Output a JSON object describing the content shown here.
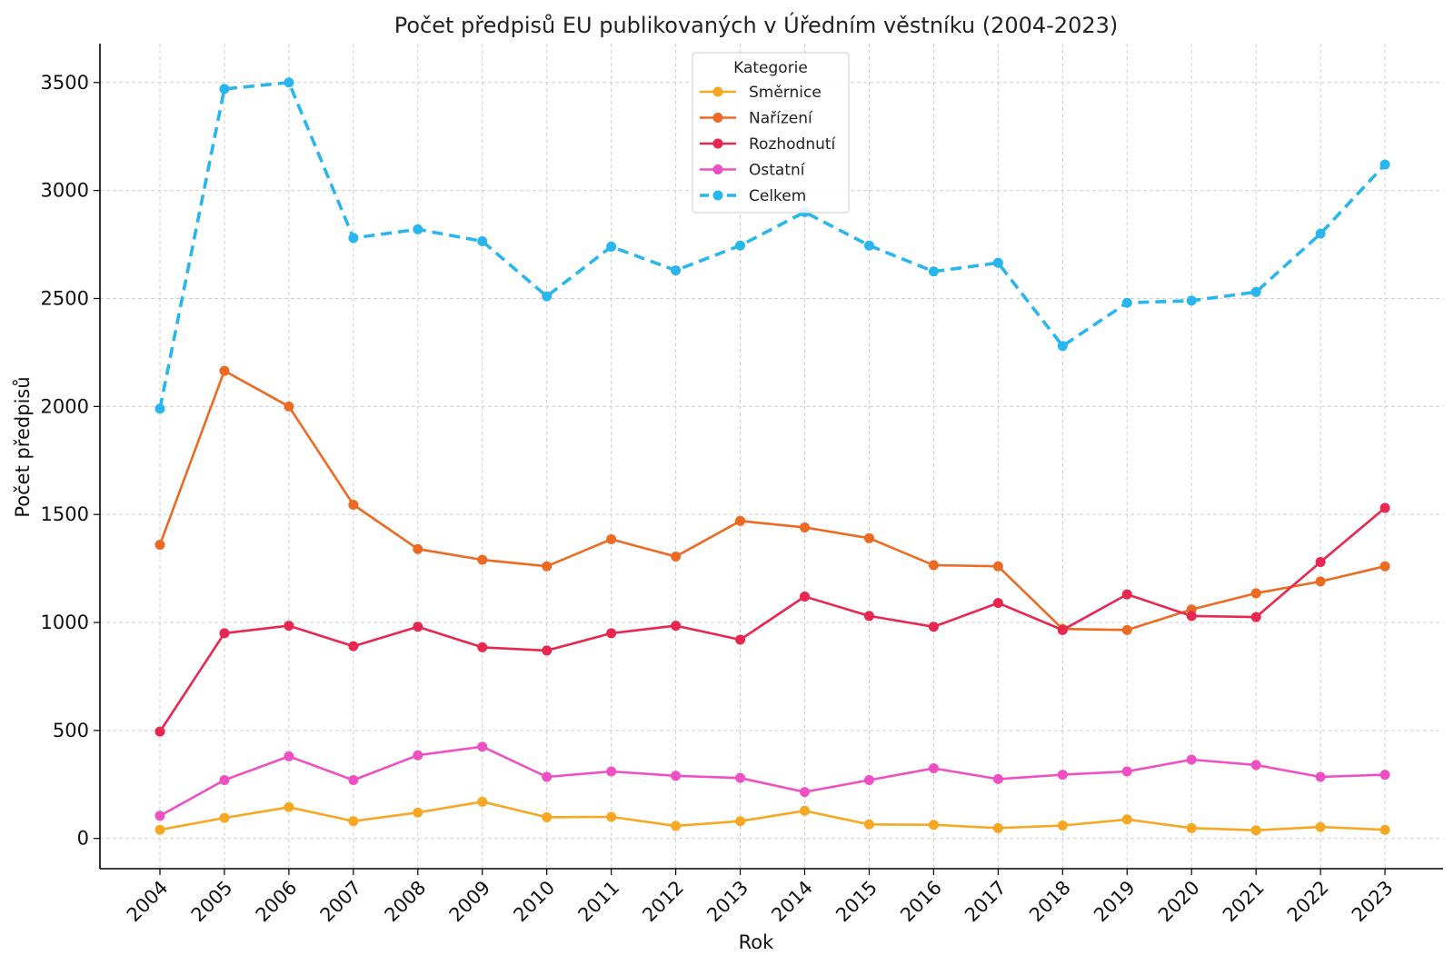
{
  "chart_data": {
    "type": "line",
    "title": "Počet předpisů EU publikovaných v Úředním věstníku (2004-2023)",
    "xlabel": "Rok",
    "ylabel": "Počet předpisů",
    "ylim": [
      -140,
      3680
    ],
    "yticks": [
      0,
      500,
      1000,
      1500,
      2000,
      2500,
      3000,
      3500
    ],
    "grid": true,
    "legend_title": "Kategorie",
    "legend_position": "top-center",
    "categories": [
      "2004",
      "2005",
      "2006",
      "2007",
      "2008",
      "2009",
      "2010",
      "2011",
      "2012",
      "2013",
      "2014",
      "2015",
      "2016",
      "2017",
      "2018",
      "2019",
      "2020",
      "2021",
      "2022",
      "2023"
    ],
    "series": [
      {
        "name": "Směrnice",
        "color": "#f7a823",
        "dashed": false,
        "values": [
          40,
          95,
          145,
          80,
          120,
          170,
          98,
          100,
          58,
          80,
          128,
          65,
          63,
          48,
          60,
          88,
          48,
          38,
          53,
          40
        ]
      },
      {
        "name": "Nařízení",
        "color": "#ec6a22",
        "dashed": false,
        "values": [
          1360,
          2165,
          2000,
          1545,
          1340,
          1290,
          1260,
          1385,
          1305,
          1470,
          1440,
          1390,
          1265,
          1260,
          970,
          965,
          1060,
          1135,
          1190,
          1260
        ]
      },
      {
        "name": "Rozhodnutí",
        "color": "#e8264f",
        "dashed": false,
        "values": [
          495,
          950,
          985,
          890,
          980,
          885,
          870,
          950,
          985,
          920,
          1120,
          1030,
          980,
          1090,
          965,
          1130,
          1030,
          1025,
          1280,
          1530
        ]
      },
      {
        "name": "Ostatní",
        "color": "#ee50c4",
        "dashed": false,
        "values": [
          105,
          270,
          380,
          270,
          385,
          425,
          285,
          310,
          290,
          280,
          215,
          270,
          325,
          275,
          295,
          310,
          365,
          340,
          285,
          295
        ]
      },
      {
        "name": "Celkem",
        "color": "#29b6ee",
        "dashed": true,
        "values": [
          1990,
          3470,
          3500,
          2780,
          2820,
          2765,
          2510,
          2740,
          2630,
          2745,
          2900,
          2745,
          2625,
          2665,
          2280,
          2480,
          2490,
          2530,
          2800,
          3120
        ]
      }
    ]
  }
}
